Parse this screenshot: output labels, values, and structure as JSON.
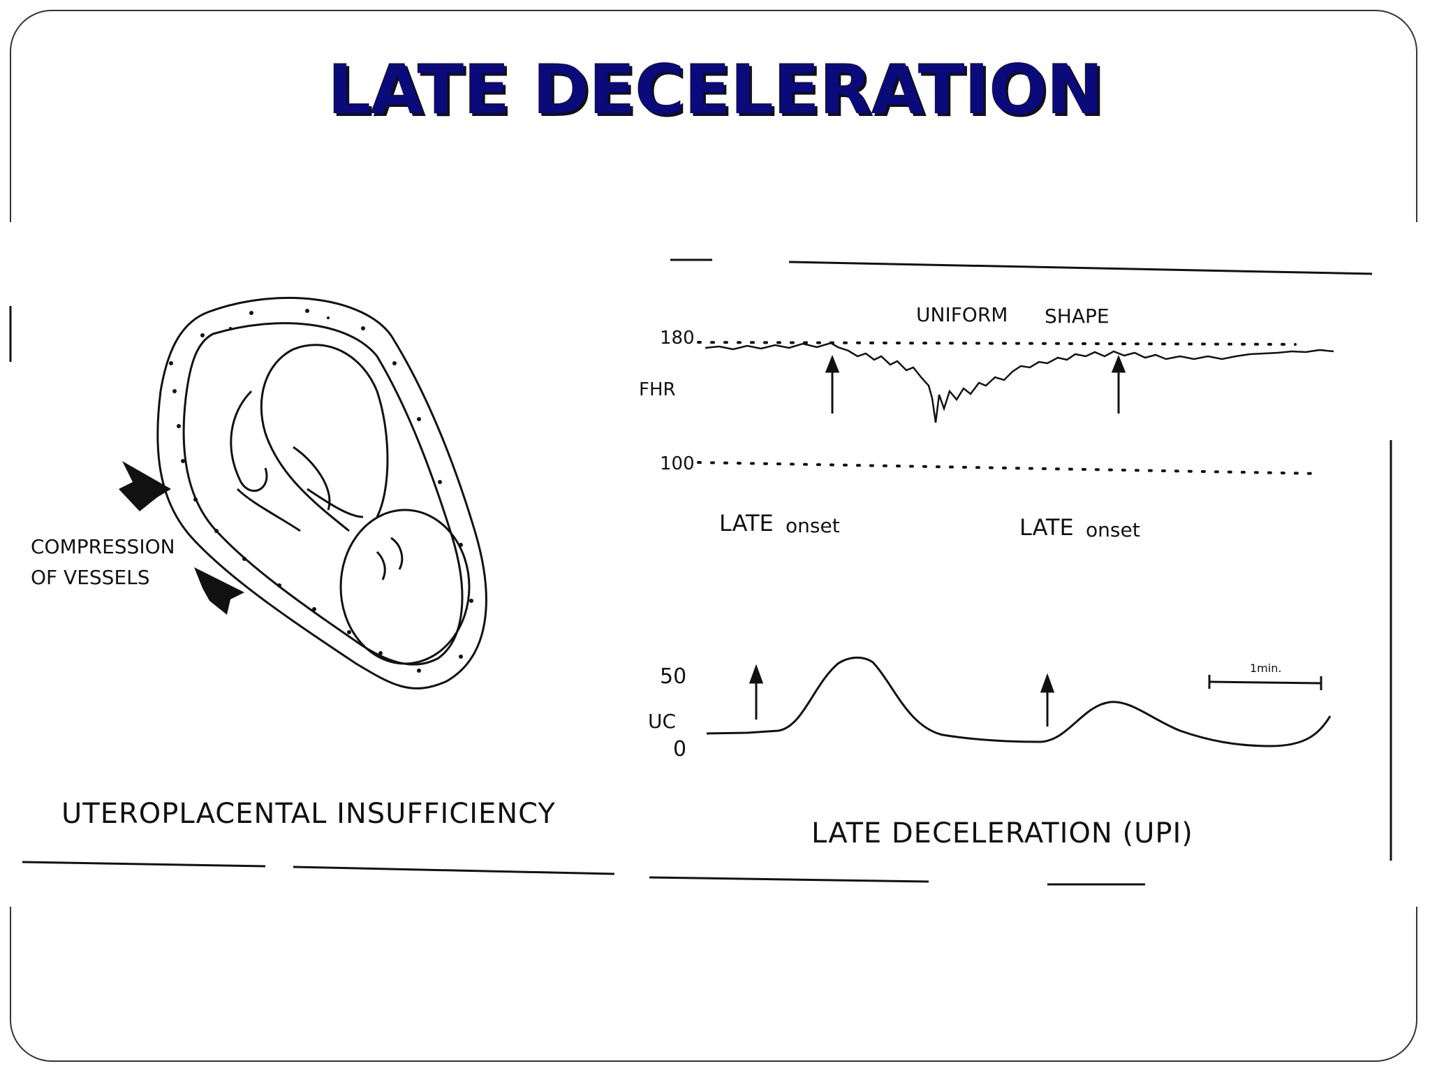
{
  "slide": {
    "title": "LATE DECELERATION"
  },
  "left_panel": {
    "compression_label_line1": "COMPRESSION",
    "compression_label_line2": "OF VESSELS",
    "caption": "UTEROPLACENTAL INSUFFICIENCY"
  },
  "right_panel": {
    "fhr_tick_180": "180",
    "fhr_tick_100": "100",
    "fhr_axis_label": "FHR",
    "uniform_label": "UNIFORM",
    "shape_label": "SHAPE",
    "late_onset_1_late": "LATE",
    "late_onset_1_onset": "onset",
    "late_onset_2_late": "LATE",
    "late_onset_2_onset": "onset",
    "uc_tick_50": "50",
    "uc_axis_label": "UC",
    "uc_tick_0": "0",
    "scale_label": "1min.",
    "caption": "LATE DECELERATION (UPI)"
  },
  "colors": {
    "title": "#0a0a7a",
    "title_shadow": "#111111",
    "ink": "#111111"
  }
}
